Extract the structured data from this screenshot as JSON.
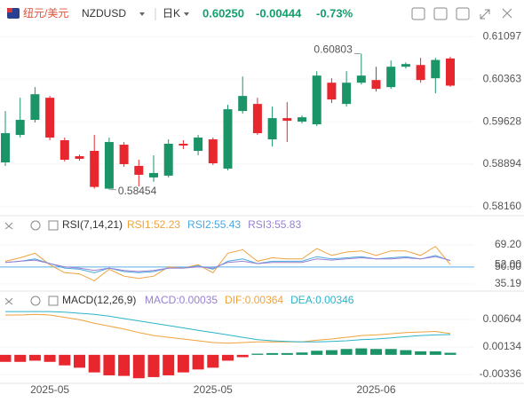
{
  "header": {
    "pair_name": "纽元/美元",
    "symbol": "NZDUSD",
    "period": "日K",
    "price": "0.60250",
    "change": "-0.00444",
    "change_pct": "-0.73%"
  },
  "chart_data": [
    {
      "type": "candlestick",
      "up_color": "#1b9468",
      "down_color": "#e8262e",
      "categories": [
        null,
        null,
        null,
        "2025-05",
        null,
        null,
        null,
        null,
        null,
        null,
        null,
        null,
        null,
        null,
        "2025-05",
        null,
        null,
        null,
        null,
        null,
        null,
        null,
        null,
        null,
        null,
        "2025-06",
        null,
        null,
        null,
        null,
        null
      ],
      "open": [
        0.58924,
        0.59399,
        0.59659,
        0.60041,
        0.59307,
        0.59031,
        0.59123,
        0.5847,
        0.5923,
        0.58863,
        0.58664,
        0.58695,
        0.59246,
        0.59123,
        0.59322,
        0.58817,
        0.59812,
        0.59934,
        0.59322,
        0.59689,
        0.59628,
        0.59582,
        0.60301,
        0.59934,
        0.60301,
        0.60347,
        0.60225,
        0.60577,
        0.60607,
        0.60378,
        0.6072
      ],
      "high": [
        0.59812,
        0.60041,
        0.60225,
        0.60072,
        0.59353,
        0.59061,
        0.59399,
        0.59353,
        0.59276,
        0.5897,
        0.59047,
        0.59322,
        0.59307,
        0.59399,
        0.59353,
        0.59919,
        0.60408,
        0.60041,
        0.59888,
        0.59965,
        0.59735,
        0.605,
        0.60378,
        0.605,
        0.60803,
        0.60577,
        0.60684,
        0.60653,
        0.6073,
        0.6073,
        0.6075
      ],
      "low": [
        0.58863,
        0.59353,
        0.59613,
        0.59307,
        0.5894,
        0.58955,
        0.5847,
        0.58454,
        0.58848,
        0.58511,
        0.58588,
        0.58664,
        0.59154,
        0.59047,
        0.58879,
        0.58787,
        0.59766,
        0.59399,
        0.592,
        0.59276,
        0.59597,
        0.59552,
        0.5995,
        0.59888,
        0.60271,
        0.60148,
        0.60194,
        0.60546,
        0.60301,
        0.60118,
        0.6023
      ],
      "close": [
        0.59429,
        0.59659,
        0.60102,
        0.59353,
        0.5897,
        0.58986,
        0.585,
        0.59276,
        0.58894,
        0.5871,
        0.58741,
        0.59246,
        0.59215,
        0.59353,
        0.58909,
        0.59842,
        0.60072,
        0.59429,
        0.59689,
        0.59643,
        0.59704,
        0.60424,
        0.60011,
        0.60301,
        0.60424,
        0.60194,
        0.60577,
        0.60623,
        0.60347,
        0.60694,
        0.6025
      ],
      "high_label": "0.60803",
      "low_label": "0.58454",
      "ylim": [
        0.5805,
        0.6127
      ],
      "yticks": [
        0.61097,
        0.60363,
        0.59628,
        0.58894,
        {
          "value": 0.5816,
          "label": "0.58160"
        }
      ]
    },
    {
      "type": "line",
      "title": "RSI(7,14,21)",
      "series": [
        {
          "name": "RSI1:52.23",
          "color": "#f0a23c",
          "values": [
            55,
            58,
            62,
            52,
            45,
            44,
            38,
            48,
            42,
            40,
            42,
            50,
            49,
            52,
            45,
            62,
            65,
            55,
            58,
            57,
            57,
            66,
            60,
            63,
            64,
            60,
            64,
            64,
            60,
            68,
            52.23
          ]
        },
        {
          "name": "RSI2:55.43",
          "color": "#4aa8e0",
          "values": [
            54,
            55,
            57,
            53,
            49,
            48,
            45,
            49,
            46,
            45,
            46,
            49,
            49,
            51,
            48,
            55,
            57,
            53,
            55,
            55,
            55,
            59,
            57,
            58,
            59,
            57,
            58,
            59,
            57,
            60,
            55.43
          ]
        },
        {
          "name": "RSI3:55.83",
          "color": "#9a80d2",
          "values": [
            54,
            55,
            56,
            53,
            50,
            49,
            47,
            49,
            47,
            46,
            47,
            49,
            49,
            50,
            49,
            54,
            55,
            53,
            54,
            54,
            54,
            57,
            56,
            57,
            58,
            57,
            57,
            58,
            57,
            59,
            55.83
          ]
        }
      ],
      "hline": {
        "value": 50,
        "color": "#5aaee8"
      },
      "ylim": [
        30.55,
        92.4
      ],
      "yticks": [
        {
          "value": 69.2,
          "label": "69.20"
        },
        {
          "value": 52,
          "label": "52.00"
        },
        {
          "value": 50,
          "label": "50.00"
        },
        35.19
      ]
    },
    {
      "type": "macd",
      "title": "MACD(12,26,9)",
      "up_color": "#1b9468",
      "down_color": "#e8262e",
      "series": [
        {
          "name": "MACD:0.00035",
          "color": "#9a80d2",
          "values": [
            -0.0012,
            -0.0012,
            -0.001,
            -0.0012,
            -0.0018,
            -0.0022,
            -0.003,
            -0.0035,
            -0.0036,
            -0.004,
            -0.0038,
            -0.0035,
            -0.003,
            -0.0025,
            -0.0022,
            -0.001,
            -0.0004,
            0.0002,
            0.0003,
            0.0003,
            0.0004,
            0.0007,
            0.0008,
            0.001,
            0.0011,
            0.001,
            0.001,
            0.0008,
            0.0006,
            0.0006,
            0.00035
          ]
        },
        {
          "name": "DIF:0.00364",
          "color": "#f0a23c",
          "values": [
            0.0068,
            0.0068,
            0.0069,
            0.0068,
            0.0064,
            0.006,
            0.0054,
            0.0049,
            0.0044,
            0.0038,
            0.0033,
            0.003,
            0.0027,
            0.0024,
            0.0021,
            0.002,
            0.0021,
            0.0022,
            0.0022,
            0.0022,
            0.0022,
            0.0025,
            0.0027,
            0.003,
            0.0033,
            0.0034,
            0.0036,
            0.0038,
            0.0039,
            0.004,
            0.00364
          ]
        },
        {
          "name": "DEA:0.00346",
          "color": "#2bb3c8",
          "values": [
            0.0074,
            0.0074,
            0.0074,
            0.0074,
            0.0073,
            0.0071,
            0.0069,
            0.0066,
            0.0062,
            0.0058,
            0.0054,
            0.005,
            0.0046,
            0.0042,
            0.0038,
            0.0034,
            0.003,
            0.0026,
            0.0024,
            0.0023,
            0.0022,
            0.0022,
            0.0023,
            0.0024,
            0.0026,
            0.0027,
            0.0029,
            0.0031,
            0.0033,
            0.0034,
            0.00346
          ]
        }
      ],
      "ylim": [
        -0.00457,
        0.01044
      ],
      "yticks": [
        0.00604,
        0.00134,
        -0.00336
      ]
    }
  ]
}
